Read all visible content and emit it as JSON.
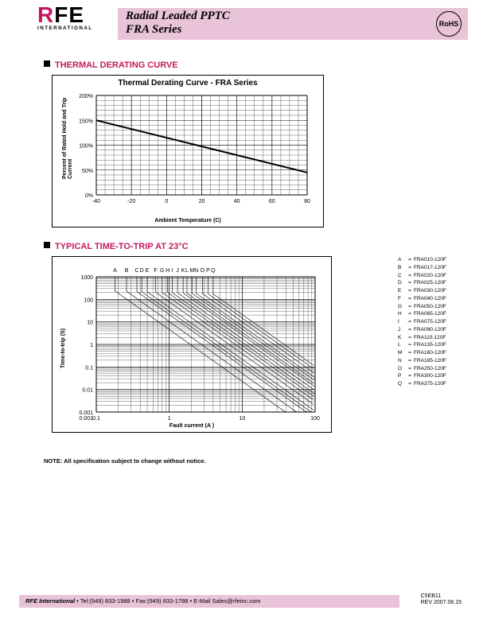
{
  "header": {
    "logo_main": "RFE",
    "logo_sub": "INTERNATIONAL",
    "title_line1": "Radial Leaded PPTC",
    "title_line2": "FRA Series",
    "rohs": "RoHS"
  },
  "section1": {
    "heading": "THERMAL DERATING CURVE",
    "chart": {
      "title": "Thermal Derating Curve - FRA Series",
      "xlabel": "Ambient Temperature (C)",
      "ylabel": "Percent of Rated Hold and Trip\nCurrent",
      "xticks": [
        -40,
        -20,
        0,
        20,
        40,
        60,
        80
      ],
      "yticks": [
        "0%",
        "50%",
        "100%",
        "150%",
        "200%"
      ],
      "xlim": [
        -40,
        80
      ],
      "ylim": [
        0,
        200
      ],
      "line": [
        [
          -40,
          150
        ],
        [
          80,
          45
        ]
      ],
      "grid_color": "#000000",
      "line_color": "#000000",
      "line_width": 2
    }
  },
  "section2": {
    "heading": "TYPICAL TIME-TO-TRIP AT 23°C",
    "chart": {
      "xlabel": "Fault current (A )",
      "ylabel": "Time-to-trip (S)",
      "xticks": [
        "0.1",
        "1",
        "10",
        "100"
      ],
      "yticks": [
        "0.001",
        "0.001",
        "0.01",
        "0.1",
        "1",
        "10",
        "100",
        "1000"
      ],
      "top_labels": [
        "A",
        "B",
        "C",
        "D",
        "E",
        "F",
        "G",
        "H",
        "I",
        "J",
        "K",
        "L",
        "M",
        "N",
        "O",
        "P",
        "Q"
      ],
      "xlog": true,
      "ylog": true,
      "grid_color": "#000000"
    },
    "legend": [
      {
        "k": "A",
        "v": "FRA010-120F"
      },
      {
        "k": "B",
        "v": "FRA017-120F"
      },
      {
        "k": "C",
        "v": "FRA020-120F"
      },
      {
        "k": "D",
        "v": "FRA025-120F"
      },
      {
        "k": "E",
        "v": "FRA030-120F"
      },
      {
        "k": "F",
        "v": "FRA040-120F"
      },
      {
        "k": "G",
        "v": "FRA050-120F"
      },
      {
        "k": "H",
        "v": "FRA065-120F"
      },
      {
        "k": "I",
        "v": "FRA075-120F"
      },
      {
        "k": "J",
        "v": "FRA090-120F"
      },
      {
        "k": "K",
        "v": "FRA110-120F"
      },
      {
        "k": "L",
        "v": "FRA135-120F"
      },
      {
        "k": "M",
        "v": "FRA160-120F"
      },
      {
        "k": "N",
        "v": "FRA185-120F"
      },
      {
        "k": "O",
        "v": "FRA250-120F"
      },
      {
        "k": "P",
        "v": "FRA300-120F"
      },
      {
        "k": "Q",
        "v": "FRA375-120F"
      }
    ]
  },
  "note": "NOTE: All specification subject to change without notice.",
  "footer": {
    "company": "RFE International",
    "tel": "Tel:(949) 833-1988",
    "fax": "Fax:(949) 833-1788",
    "email": "E-Mail Sales@rfeinc.com",
    "doc": "C5EB11",
    "rev": "REV 2007.06.15"
  },
  "colors": {
    "pink": "#e9c3d7",
    "magenta": "#c4185e"
  }
}
